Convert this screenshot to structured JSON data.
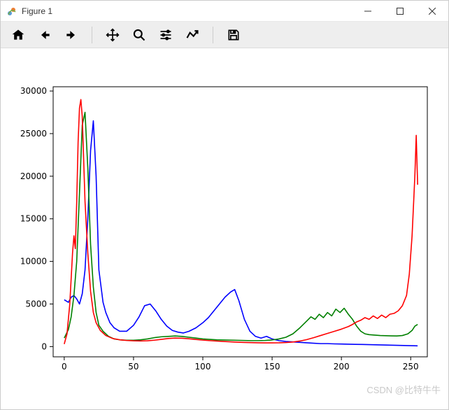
{
  "window": {
    "title": "Figure 1"
  },
  "toolbar": {
    "home": "Home",
    "back": "Back",
    "forward": "Forward",
    "pan": "Pan",
    "zoom": "Zoom",
    "subplots": "Configure subplots",
    "edit": "Edit",
    "save": "Save"
  },
  "chart": {
    "type": "line",
    "background_color": "#ffffff",
    "border_color": "#000000",
    "xlim": [
      -8,
      262
    ],
    "ylim": [
      -1200,
      30500
    ],
    "xticks": [
      0,
      50,
      100,
      150,
      200,
      250
    ],
    "yticks": [
      0,
      5000,
      10000,
      15000,
      20000,
      25000,
      30000
    ],
    "label_fontsize": 12,
    "line_width": 1.6,
    "series": [
      {
        "name": "blue",
        "color": "#0000ff",
        "points": [
          [
            0,
            5500
          ],
          [
            3,
            5200
          ],
          [
            5,
            5800
          ],
          [
            7,
            6000
          ],
          [
            9,
            5600
          ],
          [
            11,
            5000
          ],
          [
            13,
            6200
          ],
          [
            15,
            9000
          ],
          [
            17,
            15000
          ],
          [
            19,
            23000
          ],
          [
            21,
            26500
          ],
          [
            23,
            20000
          ],
          [
            25,
            9000
          ],
          [
            28,
            5200
          ],
          [
            30,
            4000
          ],
          [
            33,
            2800
          ],
          [
            36,
            2200
          ],
          [
            40,
            1800
          ],
          [
            45,
            1800
          ],
          [
            50,
            2500
          ],
          [
            54,
            3500
          ],
          [
            58,
            4800
          ],
          [
            62,
            5000
          ],
          [
            66,
            4200
          ],
          [
            70,
            3200
          ],
          [
            74,
            2400
          ],
          [
            78,
            1900
          ],
          [
            82,
            1700
          ],
          [
            86,
            1600
          ],
          [
            90,
            1800
          ],
          [
            95,
            2200
          ],
          [
            100,
            2800
          ],
          [
            104,
            3400
          ],
          [
            108,
            4200
          ],
          [
            112,
            5000
          ],
          [
            116,
            5800
          ],
          [
            120,
            6400
          ],
          [
            123,
            6700
          ],
          [
            126,
            5400
          ],
          [
            130,
            3200
          ],
          [
            134,
            1800
          ],
          [
            138,
            1200
          ],
          [
            142,
            1000
          ],
          [
            146,
            1200
          ],
          [
            150,
            900
          ],
          [
            155,
            700
          ],
          [
            160,
            600
          ],
          [
            165,
            550
          ],
          [
            170,
            500
          ],
          [
            175,
            450
          ],
          [
            180,
            400
          ],
          [
            185,
            350
          ],
          [
            190,
            350
          ],
          [
            195,
            320
          ],
          [
            200,
            300
          ],
          [
            205,
            280
          ],
          [
            210,
            260
          ],
          [
            215,
            250
          ],
          [
            220,
            230
          ],
          [
            225,
            210
          ],
          [
            230,
            190
          ],
          [
            235,
            170
          ],
          [
            240,
            150
          ],
          [
            245,
            130
          ],
          [
            250,
            110
          ],
          [
            253,
            100
          ],
          [
            255,
            90
          ]
        ]
      },
      {
        "name": "green",
        "color": "#008000",
        "points": [
          [
            0,
            1000
          ],
          [
            3,
            2000
          ],
          [
            5,
            3500
          ],
          [
            7,
            6000
          ],
          [
            9,
            10000
          ],
          [
            11,
            18000
          ],
          [
            13,
            26000
          ],
          [
            15,
            27500
          ],
          [
            17,
            21000
          ],
          [
            19,
            12000
          ],
          [
            21,
            7000
          ],
          [
            23,
            4000
          ],
          [
            25,
            2500
          ],
          [
            28,
            1800
          ],
          [
            32,
            1200
          ],
          [
            36,
            900
          ],
          [
            40,
            800
          ],
          [
            45,
            750
          ],
          [
            50,
            750
          ],
          [
            55,
            800
          ],
          [
            60,
            900
          ],
          [
            65,
            1050
          ],
          [
            70,
            1150
          ],
          [
            75,
            1200
          ],
          [
            80,
            1250
          ],
          [
            85,
            1200
          ],
          [
            90,
            1100
          ],
          [
            95,
            1000
          ],
          [
            100,
            900
          ],
          [
            105,
            850
          ],
          [
            110,
            800
          ],
          [
            115,
            780
          ],
          [
            120,
            760
          ],
          [
            125,
            740
          ],
          [
            130,
            720
          ],
          [
            135,
            700
          ],
          [
            140,
            700
          ],
          [
            145,
            720
          ],
          [
            150,
            780
          ],
          [
            155,
            900
          ],
          [
            160,
            1100
          ],
          [
            165,
            1500
          ],
          [
            170,
            2200
          ],
          [
            175,
            3000
          ],
          [
            178,
            3500
          ],
          [
            181,
            3200
          ],
          [
            184,
            3800
          ],
          [
            187,
            3400
          ],
          [
            190,
            4000
          ],
          [
            193,
            3600
          ],
          [
            196,
            4400
          ],
          [
            199,
            4000
          ],
          [
            202,
            4500
          ],
          [
            205,
            3800
          ],
          [
            208,
            3200
          ],
          [
            211,
            2400
          ],
          [
            214,
            1800
          ],
          [
            217,
            1500
          ],
          [
            220,
            1400
          ],
          [
            224,
            1350
          ],
          [
            228,
            1300
          ],
          [
            232,
            1280
          ],
          [
            236,
            1260
          ],
          [
            240,
            1250
          ],
          [
            244,
            1300
          ],
          [
            248,
            1500
          ],
          [
            251,
            1900
          ],
          [
            253,
            2400
          ],
          [
            255,
            2600
          ]
        ]
      },
      {
        "name": "red",
        "color": "#ff0000",
        "points": [
          [
            0,
            300
          ],
          [
            2,
            1500
          ],
          [
            4,
            5000
          ],
          [
            6,
            11000
          ],
          [
            7,
            13000
          ],
          [
            8,
            11500
          ],
          [
            9,
            17000
          ],
          [
            10,
            24000
          ],
          [
            11,
            28000
          ],
          [
            12,
            29000
          ],
          [
            13,
            27000
          ],
          [
            14,
            22000
          ],
          [
            15,
            17000
          ],
          [
            17,
            11000
          ],
          [
            19,
            6500
          ],
          [
            21,
            4000
          ],
          [
            23,
            2800
          ],
          [
            26,
            1900
          ],
          [
            30,
            1300
          ],
          [
            35,
            950
          ],
          [
            40,
            800
          ],
          [
            45,
            720
          ],
          [
            50,
            680
          ],
          [
            55,
            660
          ],
          [
            60,
            680
          ],
          [
            65,
            750
          ],
          [
            70,
            850
          ],
          [
            75,
            950
          ],
          [
            80,
            1000
          ],
          [
            85,
            980
          ],
          [
            90,
            920
          ],
          [
            95,
            840
          ],
          [
            100,
            760
          ],
          [
            105,
            700
          ],
          [
            110,
            650
          ],
          [
            115,
            600
          ],
          [
            120,
            560
          ],
          [
            125,
            520
          ],
          [
            130,
            490
          ],
          [
            135,
            470
          ],
          [
            140,
            450
          ],
          [
            145,
            440
          ],
          [
            150,
            440
          ],
          [
            155,
            450
          ],
          [
            160,
            480
          ],
          [
            165,
            540
          ],
          [
            170,
            650
          ],
          [
            175,
            820
          ],
          [
            180,
            1050
          ],
          [
            185,
            1300
          ],
          [
            190,
            1550
          ],
          [
            195,
            1800
          ],
          [
            200,
            2050
          ],
          [
            205,
            2350
          ],
          [
            208,
            2600
          ],
          [
            211,
            2900
          ],
          [
            214,
            3100
          ],
          [
            217,
            3400
          ],
          [
            220,
            3200
          ],
          [
            223,
            3600
          ],
          [
            226,
            3300
          ],
          [
            229,
            3700
          ],
          [
            232,
            3400
          ],
          [
            235,
            3800
          ],
          [
            238,
            3900
          ],
          [
            241,
            4200
          ],
          [
            244,
            4800
          ],
          [
            247,
            6000
          ],
          [
            249,
            8500
          ],
          [
            251,
            13000
          ],
          [
            253,
            20000
          ],
          [
            254,
            24800
          ],
          [
            255,
            19000
          ]
        ]
      }
    ]
  },
  "watermark": "CSDN @比特牛牛"
}
